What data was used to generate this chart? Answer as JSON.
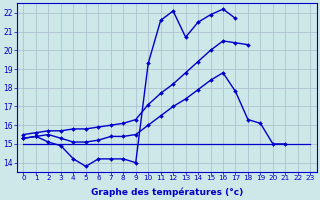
{
  "color": "#0000cc",
  "bg_color": "#cce8e8",
  "grid_color": "#aabbcc",
  "xlabel": "Graphe des températures (°c)",
  "xlim": [
    -0.5,
    23.5
  ],
  "ylim": [
    13.5,
    22.5
  ],
  "yticks": [
    14,
    15,
    16,
    17,
    18,
    19,
    20,
    21,
    22
  ],
  "xticks": [
    0,
    1,
    2,
    3,
    4,
    5,
    6,
    7,
    8,
    9,
    10,
    11,
    12,
    13,
    14,
    15,
    16,
    17,
    18,
    19,
    20,
    21,
    22,
    23
  ],
  "lines": [
    {
      "x": [
        0,
        1,
        2,
        3,
        4,
        5,
        6,
        7,
        8,
        9,
        10,
        11,
        12,
        13,
        14,
        15,
        16,
        17
      ],
      "y": [
        15.3,
        15.4,
        15.1,
        14.9,
        14.2,
        13.8,
        14.2,
        14.2,
        14.2,
        14.0,
        19.3,
        21.6,
        22.1,
        20.7,
        21.5,
        21.9,
        22.2,
        21.7
      ],
      "markers": true,
      "lw": 1.0
    },
    {
      "x": [
        0,
        1,
        2,
        3,
        4,
        5,
        6,
        7,
        8,
        9,
        10,
        11,
        12,
        13,
        14,
        15,
        16,
        17,
        18
      ],
      "y": [
        15.5,
        15.6,
        15.7,
        15.7,
        15.8,
        15.8,
        15.9,
        16.0,
        16.1,
        16.3,
        17.1,
        17.7,
        18.2,
        18.8,
        19.4,
        20.0,
        20.5,
        20.4,
        20.3
      ],
      "markers": true,
      "lw": 1.0
    },
    {
      "x": [
        0,
        1,
        2,
        3,
        4,
        5,
        6,
        7,
        8,
        9,
        10,
        11,
        12,
        13,
        14,
        15,
        16,
        17,
        18,
        19,
        20,
        21
      ],
      "y": [
        15.3,
        15.4,
        15.5,
        15.3,
        15.1,
        15.1,
        15.2,
        15.4,
        15.4,
        15.5,
        16.0,
        16.5,
        17.0,
        17.4,
        17.9,
        18.4,
        18.8,
        17.8,
        16.3,
        16.1,
        15.0,
        15.0
      ],
      "markers": true,
      "lw": 1.0
    },
    {
      "x": [
        0,
        23
      ],
      "y": [
        15.0,
        15.0
      ],
      "markers": false,
      "lw": 0.9
    }
  ]
}
